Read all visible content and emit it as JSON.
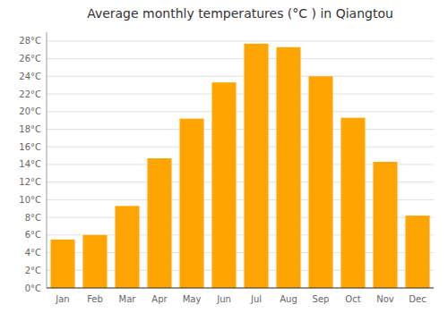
{
  "chart_data": {
    "type": "bar",
    "title": "Average monthly temperatures (°C ) in Qiangtou",
    "categories": [
      "Jan",
      "Feb",
      "Mar",
      "Apr",
      "May",
      "Jun",
      "Jul",
      "Aug",
      "Sep",
      "Oct",
      "Nov",
      "Dec"
    ],
    "values": [
      5.5,
      6.0,
      9.3,
      14.7,
      19.2,
      23.3,
      27.7,
      27.3,
      24.0,
      19.3,
      14.3,
      8.2
    ],
    "color": "#FFA500",
    "ylim": [
      0,
      29
    ],
    "yticks": [
      {
        "value": 0,
        "label": "0°C"
      },
      {
        "value": 2,
        "label": "2°C"
      },
      {
        "value": 4,
        "label": "4°C"
      },
      {
        "value": 6,
        "label": "6°C"
      },
      {
        "value": 8,
        "label": "8°C"
      },
      {
        "value": 10,
        "label": "10°C"
      },
      {
        "value": 12,
        "label": "12°C"
      },
      {
        "value": 14,
        "label": "14°C"
      },
      {
        "value": 16,
        "label": "16°C"
      },
      {
        "value": 18,
        "label": "18°C"
      },
      {
        "value": 20,
        "label": "20°C"
      },
      {
        "value": 22,
        "label": "22°C"
      },
      {
        "value": 24,
        "label": "24°C"
      },
      {
        "value": 26,
        "label": "26°C"
      },
      {
        "value": 28,
        "label": "28°C"
      }
    ],
    "grid": true
  }
}
